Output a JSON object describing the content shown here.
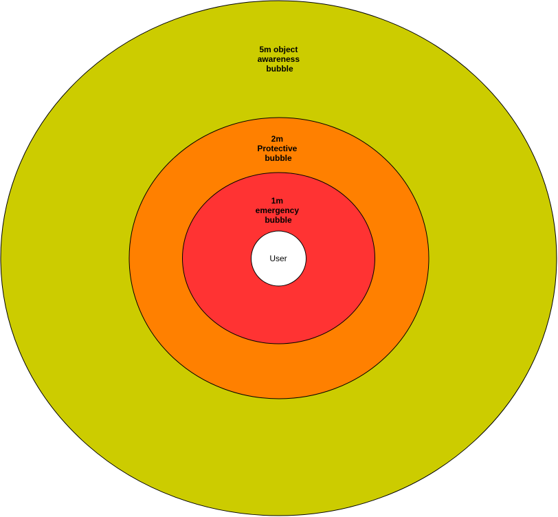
{
  "zones": [
    {
      "id": "awareness",
      "lines": [
        "5m object",
        "awareness",
        "bubble"
      ],
      "fill": "#CCCC00"
    },
    {
      "id": "protective",
      "lines": [
        "2m",
        "Protective",
        "bubble"
      ],
      "fill": "#FF8000"
    },
    {
      "id": "emergency",
      "lines": [
        "1m",
        "emergency",
        "bubble"
      ],
      "fill": "#FF3333"
    }
  ],
  "user": {
    "label": "User",
    "fill": "#FFFFFF"
  },
  "stroke": "#000000"
}
